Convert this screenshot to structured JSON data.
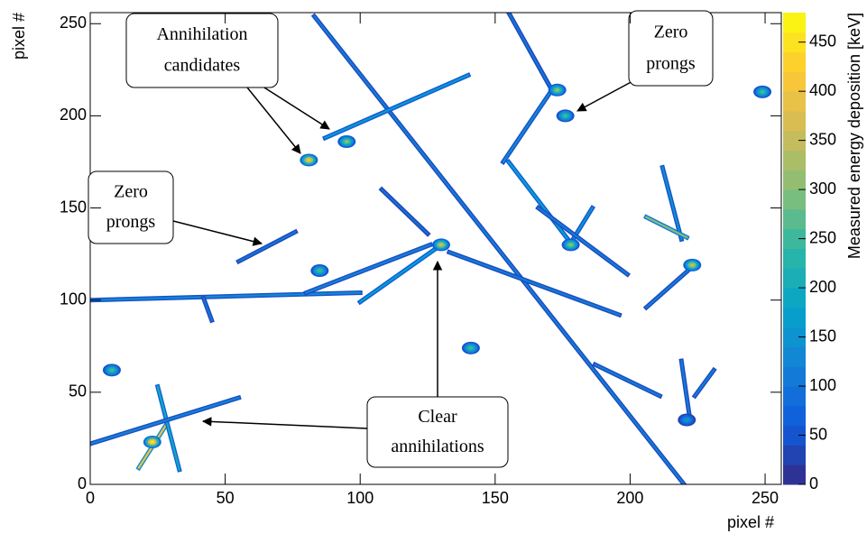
{
  "chart_data": {
    "type": "heatmap",
    "xlabel": "pixel #",
    "ylabel": "pixel #",
    "zlabel": "Measured energy deposition [keV]",
    "xlim": [
      0,
      256
    ],
    "ylim": [
      0,
      256
    ],
    "zlim": [
      0,
      480
    ],
    "xticks": [
      0,
      50,
      100,
      150,
      200,
      250
    ],
    "yticks": [
      0,
      50,
      100,
      150,
      200,
      250
    ],
    "zticks": [
      0,
      50,
      100,
      150,
      200,
      250,
      300,
      350,
      400,
      450
    ],
    "colormap": [
      "#352a87",
      "#0f5cdd",
      "#1481d6",
      "#06a4ca",
      "#2eb7a4",
      "#87bf77",
      "#d1bb59",
      "#fec832",
      "#f9fb0e"
    ],
    "tracks": [
      {
        "x": [
          83,
          220
        ],
        "y": [
          254,
          0
        ],
        "energy": 110
      },
      {
        "x": [
          87,
          140
        ],
        "y": [
          188,
          222
        ],
        "energy": 160
      },
      {
        "x": [
          130,
          100
        ],
        "y": [
          130,
          99
        ],
        "energy": 170
      },
      {
        "x": [
          0,
          100
        ],
        "y": [
          100,
          104
        ],
        "energy": 130
      },
      {
        "x": [
          80,
          126
        ],
        "y": [
          104,
          130
        ],
        "energy": 120
      },
      {
        "x": [
          133,
          196
        ],
        "y": [
          126,
          92
        ],
        "energy": 110
      },
      {
        "x": [
          155,
          171
        ],
        "y": [
          256,
          214
        ],
        "energy": 100
      },
      {
        "x": [
          171,
          153
        ],
        "y": [
          214,
          175
        ],
        "energy": 130
      },
      {
        "x": [
          155,
          178
        ],
        "y": [
          175,
          131
        ],
        "energy": 170
      },
      {
        "x": [
          178,
          186
        ],
        "y": [
          131,
          150
        ],
        "energy": 150
      },
      {
        "x": [
          166,
          199
        ],
        "y": [
          150,
          114
        ],
        "energy": 110
      },
      {
        "x": [
          212,
          219
        ],
        "y": [
          172,
          133
        ],
        "energy": 140
      },
      {
        "x": [
          206,
          221
        ],
        "y": [
          145,
          134
        ],
        "energy": 300
      },
      {
        "x": [
          223,
          206
        ],
        "y": [
          118,
          96
        ],
        "energy": 110
      },
      {
        "x": [
          55,
          76
        ],
        "y": [
          121,
          137
        ],
        "energy": 100
      },
      {
        "x": [
          18,
          28
        ],
        "y": [
          9,
          32
        ],
        "energy": 400
      },
      {
        "x": [
          25,
          33
        ],
        "y": [
          53,
          8
        ],
        "energy": 200
      },
      {
        "x": [
          0,
          55
        ],
        "y": [
          22,
          47
        ],
        "energy": 120
      },
      {
        "x": [
          108,
          125
        ],
        "y": [
          160,
          136
        ],
        "energy": 90
      },
      {
        "x": [
          187,
          211
        ],
        "y": [
          65,
          48
        ],
        "energy": 110
      },
      {
        "x": [
          219,
          222
        ],
        "y": [
          67,
          37
        ],
        "energy": 110
      },
      {
        "x": [
          224,
          231
        ],
        "y": [
          48,
          62
        ],
        "energy": 110
      },
      {
        "x": [
          42,
          45
        ],
        "y": [
          101,
          89
        ],
        "energy": 100
      }
    ],
    "blobs": [
      {
        "x": 130,
        "y": 130,
        "energy": 350
      },
      {
        "x": 95,
        "y": 186,
        "energy": 300
      },
      {
        "x": 173,
        "y": 214,
        "energy": 300
      },
      {
        "x": 176,
        "y": 200,
        "energy": 250
      },
      {
        "x": 178,
        "y": 130,
        "energy": 300
      },
      {
        "x": 223,
        "y": 119,
        "energy": 350
      },
      {
        "x": 249,
        "y": 213,
        "energy": 250
      },
      {
        "x": 81,
        "y": 176,
        "energy": 400
      },
      {
        "x": 85,
        "y": 116,
        "energy": 250
      },
      {
        "x": 141,
        "y": 74,
        "energy": 250
      },
      {
        "x": 8,
        "y": 62,
        "energy": 250
      },
      {
        "x": 23,
        "y": 23,
        "energy": 450
      },
      {
        "x": 221,
        "y": 35,
        "energy": 150
      }
    ],
    "annotations": [
      {
        "lines": [
          "Annihilation",
          "candidates"
        ]
      },
      {
        "lines": [
          "Zero",
          "prongs"
        ]
      },
      {
        "lines": [
          "Zero",
          "prongs"
        ]
      },
      {
        "lines": [
          "Clear",
          "annihilations"
        ]
      }
    ]
  }
}
